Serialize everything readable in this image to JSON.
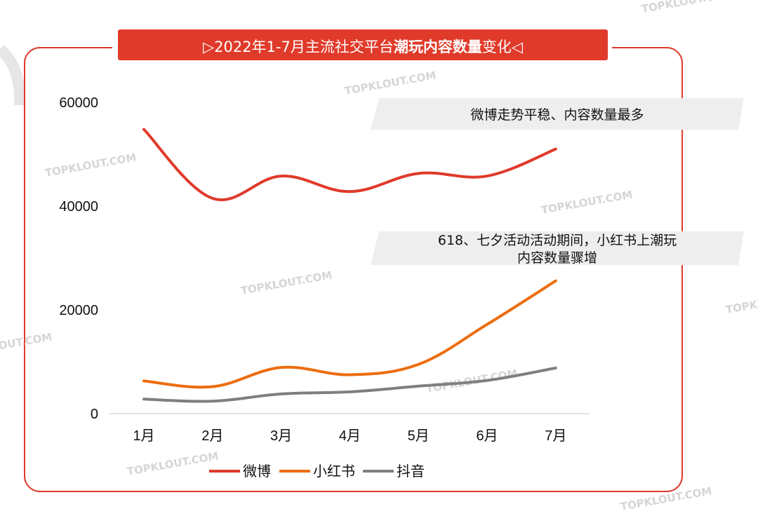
{
  "title": {
    "prefix": "▷2022年1-7月主流社交平台",
    "bold": "潮玩内容数量",
    "suffix": "变化◁"
  },
  "colors": {
    "accent": "#e03a2a",
    "weibo": "#e03a2a",
    "xiaohongshu": "#ec6d0f",
    "douyin": "#7f7f7f",
    "annotation_bg": "#eeeeee",
    "axis": "#d9d9d9"
  },
  "chart_data": {
    "type": "line",
    "title": "▷2022年1-7月主流社交平台潮玩内容数量变化◁",
    "categories": [
      "1月",
      "2月",
      "3月",
      "4月",
      "5月",
      "6月",
      "7月"
    ],
    "ylim": [
      0,
      60000
    ],
    "yticks": [
      "0",
      "20000",
      "40000",
      "60000"
    ],
    "ytick_values": [
      0,
      20000,
      40000,
      60000
    ],
    "grid": false,
    "legend_position": "bottom",
    "series": [
      {
        "name": "微博",
        "color": "#e03a2a",
        "values": [
          54800,
          41500,
          45800,
          42800,
          46300,
          45800,
          51000
        ]
      },
      {
        "name": "小红书",
        "color": "#ec6d0f",
        "values": [
          6300,
          5200,
          8900,
          7500,
          9500,
          17200,
          25600
        ]
      },
      {
        "name": "抖音",
        "color": "#7f7f7f",
        "values": [
          2800,
          2400,
          3800,
          4200,
          5300,
          6400,
          8800
        ]
      }
    ],
    "annotations": [
      {
        "lines": [
          "微博走势平稳、内容数量最多"
        ]
      },
      {
        "lines": [
          "618、七夕活动活动期间，小红书上潮玩",
          "内容数量骤增"
        ]
      }
    ]
  },
  "watermark_text": "TOPKLOUT.COM"
}
